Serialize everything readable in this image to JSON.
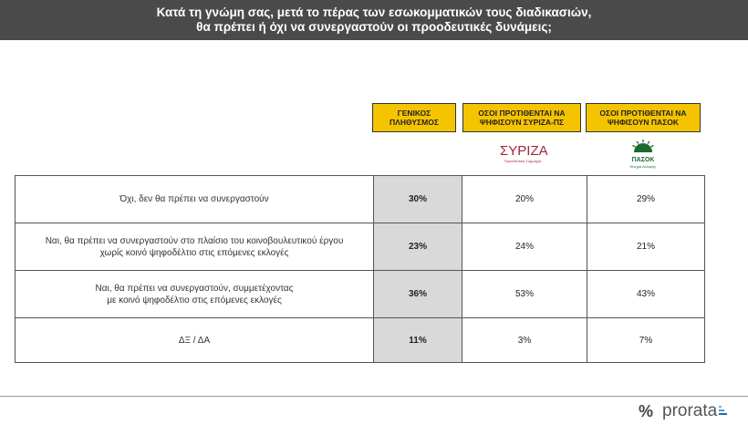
{
  "header": {
    "line1": "Κατά τη γνώμη σας, μετά το πέρας των εσωκομματικών τους διαδικασιών,",
    "line2": "θα πρέπει ή όχι να συνεργαστούν οι προοδευτικές δυνάμεις;"
  },
  "columns": {
    "general": [
      "ΓΕΝΙΚΟΣ",
      "ΠΛΗΘΥΣΜΟΣ"
    ],
    "syriza": [
      "ΟΣΟΙ ΠΡΟΤΙΘΕΝΤΑΙ ΝΑ",
      "ΨΗΦΙΣΟΥΝ ΣΥΡΙΖΑ-ΠΣ"
    ],
    "pasok": [
      "ΟΣΟΙ ΠΡΟΤΙΘΕΝΤΑΙ ΝΑ",
      "ΨΗΦΙΣΟΥΝ ΠΑΣΟΚ"
    ]
  },
  "logos": {
    "syriza": {
      "name": "ΣΥΡΙΖΑ",
      "tagline": "Προοδευτική Συμμαχία",
      "color": "#a4243b"
    },
    "pasok": {
      "name": "ΠΑΣΟΚ",
      "tagline": "Κίνημα Αλλαγής",
      "color": "#1a6b2f"
    }
  },
  "rows": [
    {
      "label": [
        "Όχι, δεν θα πρέπει να συνεργαστούν"
      ],
      "general": "30%",
      "syriza": "20%",
      "pasok": "29%"
    },
    {
      "label": [
        "Ναι, θα πρέπει να συνεργαστούν στο πλαίσιο του κοινοβουλευτικού έργου",
        "χωρίς κοινό ψηφοδέλτιο στις επόμενες εκλογές"
      ],
      "general": "23%",
      "syriza": "24%",
      "pasok": "21%"
    },
    {
      "label": [
        "Ναι, θα πρέπει να συνεργαστούν, συμμετέχοντας",
        "με κοινό ψηφοδέλτιο στις επόμενες εκλογές"
      ],
      "general": "36%",
      "syriza": "53%",
      "pasok": "43%"
    },
    {
      "label": [
        "ΔΞ / ΔΑ"
      ],
      "general": "11%",
      "syriza": "3%",
      "pasok": "7%"
    }
  ],
  "brand": {
    "symbol": "%",
    "name": "prorata"
  },
  "colors": {
    "header_bg": "#4a4a4a",
    "column_header": "#f5c400",
    "general_col_bg": "#d9d9d9"
  }
}
